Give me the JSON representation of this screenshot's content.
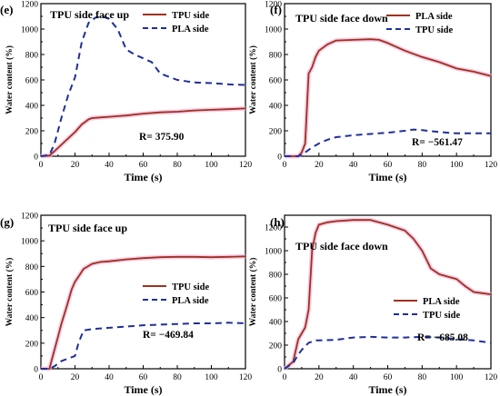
{
  "chart_data": [
    {
      "type": "line",
      "panel_label": "(e)",
      "title": "TPU side face up",
      "xlabel": "Time (s)",
      "ylabel": "Water content (%)",
      "xlim": [
        0,
        120
      ],
      "ylim": [
        0,
        1200
      ],
      "xticks": [
        "0",
        "20",
        "40",
        "60",
        "80",
        "100",
        "120"
      ],
      "yticks": [
        "0",
        "200",
        "400",
        "600",
        "800",
        "1000",
        "1200"
      ],
      "legend_position": "top-right",
      "series": [
        {
          "name": "TPU side",
          "color": "#a0301f",
          "dash": "solid",
          "x": [
            0,
            5,
            8,
            12,
            16,
            20,
            24,
            28,
            30,
            35,
            40,
            45,
            50,
            60,
            70,
            80,
            90,
            100,
            110,
            120
          ],
          "y": [
            0,
            5,
            40,
            90,
            140,
            190,
            250,
            290,
            300,
            305,
            310,
            315,
            320,
            335,
            345,
            350,
            360,
            365,
            370,
            376
          ]
        },
        {
          "name": "PLA side",
          "color": "#1f2f9a",
          "dash": "dashed",
          "x": [
            0,
            5,
            8,
            12,
            16,
            20,
            24,
            28,
            32,
            36,
            40,
            45,
            50,
            55,
            60,
            65,
            70,
            80,
            90,
            100,
            110,
            120
          ],
          "y": [
            0,
            10,
            100,
            300,
            480,
            620,
            900,
            1050,
            1090,
            1100,
            1080,
            1000,
            840,
            800,
            770,
            740,
            650,
            600,
            580,
            575,
            565,
            560
          ]
        }
      ],
      "annotation": "R= 375.90"
    },
    {
      "type": "line",
      "panel_label": "(f)",
      "title": "TPU side face down",
      "xlabel": "Time (s)",
      "ylabel": "Water content (%)",
      "xlim": [
        0,
        120
      ],
      "ylim": [
        0,
        1200
      ],
      "xticks": [
        "0",
        "20",
        "40",
        "60",
        "80",
        "100",
        "120"
      ],
      "yticks": [
        "0",
        "200",
        "400",
        "600",
        "800",
        "1000",
        "1200"
      ],
      "legend_position": "top-right",
      "series": [
        {
          "name": "PLA side",
          "color": "#a0301f",
          "dash": "solid",
          "x": [
            0,
            8,
            10,
            12,
            14,
            16,
            18,
            20,
            25,
            30,
            40,
            50,
            55,
            60,
            70,
            80,
            90,
            100,
            110,
            120
          ],
          "y": [
            0,
            0,
            30,
            100,
            650,
            700,
            780,
            830,
            880,
            910,
            915,
            920,
            915,
            890,
            830,
            780,
            740,
            690,
            665,
            630
          ]
        },
        {
          "name": "TPU side",
          "color": "#1f2f9a",
          "dash": "dashed",
          "x": [
            0,
            8,
            12,
            16,
            20,
            25,
            30,
            40,
            50,
            60,
            70,
            75,
            80,
            90,
            100,
            110,
            120
          ],
          "y": [
            0,
            0,
            30,
            70,
            100,
            130,
            150,
            165,
            175,
            185,
            200,
            210,
            205,
            190,
            180,
            180,
            180
          ]
        }
      ],
      "annotation": "R= −561.47"
    },
    {
      "type": "line",
      "panel_label": "(g)",
      "title": "TPU side face up",
      "xlabel": "Time (s)",
      "ylabel": "Water content (%)",
      "xlim": [
        0,
        120
      ],
      "ylim": [
        0,
        1200
      ],
      "xticks": [
        "0",
        "20",
        "40",
        "60",
        "80",
        "100",
        "120"
      ],
      "yticks": [
        "0",
        "200",
        "400",
        "600",
        "800",
        "1000",
        "1200"
      ],
      "legend_position": "right",
      "series": [
        {
          "name": "TPU side",
          "color": "#a0301f",
          "dash": "solid",
          "x": [
            0,
            5,
            7,
            10,
            12,
            15,
            18,
            20,
            22,
            25,
            30,
            35,
            40,
            50,
            60,
            70,
            80,
            90,
            100,
            110,
            120
          ],
          "y": [
            0,
            0,
            100,
            250,
            350,
            480,
            620,
            680,
            720,
            780,
            820,
            835,
            840,
            855,
            865,
            872,
            875,
            875,
            872,
            875,
            878
          ]
        },
        {
          "name": "PLA side",
          "color": "#1f2f9a",
          "dash": "dashed",
          "x": [
            0,
            5,
            8,
            12,
            16,
            20,
            22,
            25,
            30,
            40,
            50,
            60,
            70,
            80,
            90,
            100,
            110,
            120
          ],
          "y": [
            0,
            0,
            20,
            60,
            80,
            100,
            200,
            300,
            310,
            320,
            330,
            340,
            345,
            350,
            355,
            355,
            360,
            355
          ]
        }
      ],
      "annotation": "R= −469.84"
    },
    {
      "type": "line",
      "panel_label": "(h)",
      "title": "TPU side face down",
      "xlabel": "Time (s)",
      "ylabel": "Water content (%)",
      "xlim": [
        0,
        120
      ],
      "ylim": [
        0,
        1300
      ],
      "xticks": [
        "0",
        "20",
        "40",
        "60",
        "80",
        "100",
        "120"
      ],
      "yticks": [
        "0",
        "200",
        "400",
        "600",
        "800",
        "1000",
        "1200"
      ],
      "legend_position": "right",
      "series": [
        {
          "name": "PLA side",
          "color": "#a0301f",
          "dash": "solid",
          "x": [
            0,
            5,
            8,
            10,
            12,
            14,
            16,
            18,
            20,
            25,
            30,
            40,
            50,
            60,
            70,
            75,
            80,
            85,
            90,
            95,
            100,
            105,
            110,
            115,
            120
          ],
          "y": [
            0,
            60,
            250,
            300,
            350,
            500,
            1000,
            1150,
            1220,
            1240,
            1250,
            1260,
            1260,
            1220,
            1170,
            1100,
            1000,
            850,
            800,
            780,
            760,
            700,
            650,
            640,
            630
          ]
        },
        {
          "name": "TPU side",
          "color": "#1f2f9a",
          "dash": "dashed",
          "x": [
            0,
            5,
            8,
            10,
            14,
            18,
            20,
            30,
            40,
            50,
            60,
            70,
            80,
            90,
            100,
            110,
            120
          ],
          "y": [
            0,
            50,
            120,
            160,
            220,
            240,
            240,
            245,
            265,
            270,
            265,
            265,
            270,
            265,
            250,
            240,
            220
          ]
        }
      ],
      "annotation": "R= −685.08"
    }
  ]
}
